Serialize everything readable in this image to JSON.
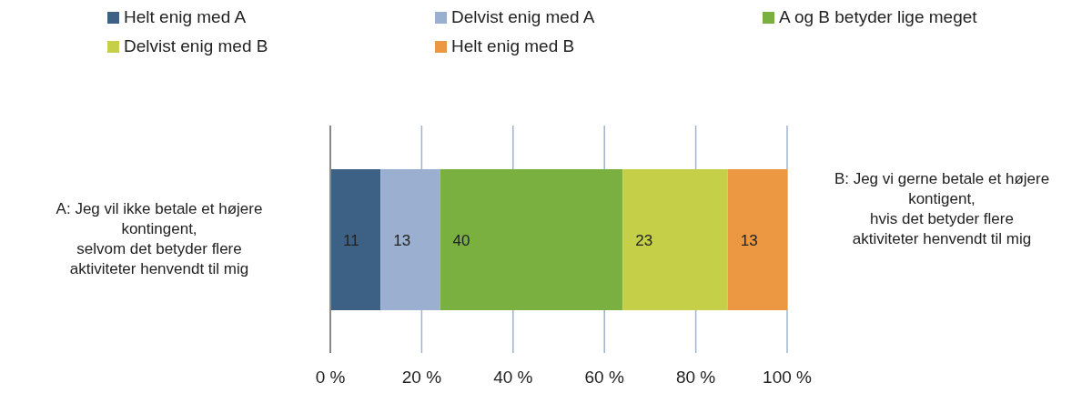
{
  "chart_data": {
    "type": "bar",
    "orientation": "horizontal",
    "stacked": true,
    "categories": [
      "A: Jeg vil ikke betale et højere\nkontingent,\nselvom det betyder flere\naktiviteter henvendt til mig"
    ],
    "series": [
      {
        "name": "Helt enig med A",
        "color": "#3d6185",
        "values": [
          11
        ]
      },
      {
        "name": "Delvist enig med A",
        "color": "#9bb0d0",
        "values": [
          13
        ]
      },
      {
        "name": "A og B betyder lige meget",
        "color": "#7ab040",
        "values": [
          40
        ]
      },
      {
        "name": "Delvist enig med B",
        "color": "#c5cf48",
        "values": [
          23
        ]
      },
      {
        "name": "Helt enig med B",
        "color": "#ec9842",
        "values": [
          13
        ]
      }
    ],
    "xlim": [
      0,
      100
    ],
    "xticks": [
      {
        "value": 0,
        "label": "0 %"
      },
      {
        "value": 20,
        "label": "20 %"
      },
      {
        "value": 40,
        "label": "40 %"
      },
      {
        "value": 60,
        "label": "60 %"
      },
      {
        "value": 80,
        "label": "80 %"
      },
      {
        "value": 100,
        "label": "100 %"
      }
    ],
    "grid": "x",
    "legend": "top",
    "data_labels": true,
    "annotations": [
      "B: Jeg vi gerne betale et højere\nkontigent,\nhvis det betyder flere\naktiviteter henvendt til mig"
    ]
  }
}
